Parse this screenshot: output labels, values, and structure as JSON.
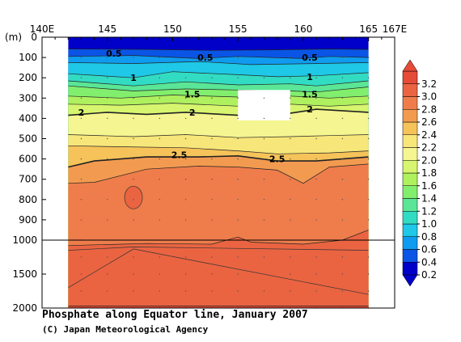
{
  "caption": {
    "title": "Phosphate along Equator line, January 2007",
    "credit": "(C) Japan Meteorological Agency"
  },
  "chart_data": {
    "type": "heatmap",
    "variable": "Phosphate",
    "x_axis": {
      "ticks": [
        140,
        145,
        150,
        155,
        160,
        165,
        167
      ],
      "tick_labels": [
        "140E",
        "145",
        "150",
        "155",
        "160",
        "165",
        "167E"
      ],
      "range": [
        140,
        167
      ]
    },
    "y_axis": {
      "unit_label": "(m)",
      "ticks_upper": [
        0,
        100,
        200,
        300,
        400,
        500,
        600,
        700,
        800,
        900,
        1000
      ],
      "ticks_lower": [
        1500,
        2000
      ],
      "tick_labels": [
        "0",
        "100",
        "200",
        "300",
        "400",
        "500",
        "600",
        "700",
        "800",
        "900",
        "1000",
        "1500",
        "2000"
      ],
      "range": [
        0,
        2000
      ],
      "scale_break_at": 1000
    },
    "data_lon_range": [
      142,
      165
    ],
    "missing_box": {
      "lon": [
        155,
        159
      ],
      "depth": [
        260,
        410
      ]
    },
    "colorbar": {
      "ticks": [
        "0.2",
        "0.4",
        "0.6",
        "0.8",
        "1.0",
        "1.2",
        "1.4",
        "1.6",
        "1.8",
        "2.0",
        "2.2",
        "2.4",
        "2.6",
        "2.8",
        "3.0",
        "3.2"
      ],
      "colors": [
        "#0000c8",
        "#0a55e6",
        "#0f9bf0",
        "#1ec8e6",
        "#32dcc3",
        "#5ae696",
        "#82ee6e",
        "#aff05f",
        "#d7f56e",
        "#f5f591",
        "#f7e67a",
        "#f5c35a",
        "#f29b50",
        "#ee7d4b",
        "#ea6441",
        "#e64b37"
      ]
    },
    "contour_labels": [
      {
        "text": "0.5",
        "lon": 145.5,
        "depth": 80
      },
      {
        "text": "0.5",
        "lon": 152.5,
        "depth": 100
      },
      {
        "text": "0.5",
        "lon": 160.5,
        "depth": 100
      },
      {
        "text": "1",
        "lon": 147,
        "depth": 200
      },
      {
        "text": "1",
        "lon": 160.5,
        "depth": 195
      },
      {
        "text": "1.5",
        "lon": 151.5,
        "depth": 280
      },
      {
        "text": "1.5",
        "lon": 160.5,
        "depth": 280
      },
      {
        "text": "2",
        "lon": 143,
        "depth": 370
      },
      {
        "text": "2",
        "lon": 151.5,
        "depth": 370
      },
      {
        "text": "2",
        "lon": 160.5,
        "depth": 355
      },
      {
        "text": "2.5",
        "lon": 150.5,
        "depth": 580
      },
      {
        "text": "2.5",
        "lon": 158,
        "depth": 600
      }
    ],
    "levels": [
      {
        "value": 0.4,
        "profile": [
          [
            142,
            58
          ],
          [
            148,
            60
          ],
          [
            153,
            65
          ],
          [
            158,
            62
          ],
          [
            162,
            58
          ],
          [
            165,
            60
          ]
        ]
      },
      {
        "value": 0.6,
        "profile": [
          [
            142,
            95
          ],
          [
            147,
            90
          ],
          [
            152,
            105
          ],
          [
            155,
            95
          ],
          [
            160,
            105
          ],
          [
            162,
            95
          ],
          [
            165,
            100
          ]
        ]
      },
      {
        "value": 0.8,
        "profile": [
          [
            142,
            125
          ],
          [
            147,
            130
          ],
          [
            152,
            120
          ],
          [
            156,
            135
          ],
          [
            161,
            130
          ],
          [
            165,
            125
          ]
        ]
      },
      {
        "value": 1.0,
        "profile": [
          [
            142,
            180
          ],
          [
            147,
            200
          ],
          [
            150,
            170
          ],
          [
            155,
            185
          ],
          [
            158,
            195
          ],
          [
            161,
            190
          ],
          [
            165,
            175
          ]
        ]
      },
      {
        "value": 1.2,
        "profile": [
          [
            142,
            215
          ],
          [
            147,
            240
          ],
          [
            151,
            220
          ],
          [
            155,
            235
          ],
          [
            159,
            230
          ],
          [
            161,
            240
          ],
          [
            165,
            215
          ]
        ]
      },
      {
        "value": 1.4,
        "profile": [
          [
            142,
            240
          ],
          [
            147,
            265
          ],
          [
            151,
            255
          ],
          [
            155,
            260
          ],
          [
            159,
            265
          ],
          [
            161,
            270
          ],
          [
            165,
            245
          ]
        ]
      },
      {
        "value": 1.6,
        "profile": [
          [
            142,
            290
          ],
          [
            146,
            300
          ],
          [
            150,
            285
          ],
          [
            155,
            295
          ],
          [
            159,
            290
          ],
          [
            162,
            300
          ],
          [
            165,
            290
          ]
        ]
      },
      {
        "value": 1.8,
        "profile": [
          [
            142,
            330
          ],
          [
            146,
            335
          ],
          [
            150,
            325
          ],
          [
            155,
            340
          ],
          [
            159,
            330
          ],
          [
            162,
            340
          ],
          [
            165,
            330
          ]
        ]
      },
      {
        "value": 2.0,
        "profile": [
          [
            142,
            385
          ],
          [
            145,
            370
          ],
          [
            148,
            380
          ],
          [
            151,
            370
          ],
          [
            155,
            385
          ],
          [
            159,
            375
          ],
          [
            161,
            355
          ],
          [
            165,
            370
          ]
        ]
      },
      {
        "value": 2.2,
        "profile": [
          [
            142,
            480
          ],
          [
            147,
            490
          ],
          [
            151,
            480
          ],
          [
            155,
            495
          ],
          [
            159,
            490
          ],
          [
            162,
            485
          ],
          [
            165,
            480
          ]
        ]
      },
      {
        "value": 2.4,
        "profile": [
          [
            142,
            535
          ],
          [
            146,
            540
          ],
          [
            151,
            545
          ],
          [
            155,
            560
          ],
          [
            158,
            575
          ],
          [
            162,
            570
          ],
          [
            165,
            560
          ]
        ]
      },
      {
        "value": 2.6,
        "profile": [
          [
            142,
            640
          ],
          [
            144,
            610
          ],
          [
            148,
            590
          ],
          [
            152,
            590
          ],
          [
            155,
            585
          ],
          [
            158,
            610
          ],
          [
            161,
            610
          ],
          [
            165,
            590
          ]
        ]
      },
      {
        "value": 2.8,
        "profile": [
          [
            142,
            720
          ],
          [
            144,
            715
          ],
          [
            148,
            650
          ],
          [
            152,
            635
          ],
          [
            155,
            640
          ],
          [
            158,
            655
          ],
          [
            160,
            720
          ],
          [
            162,
            640
          ],
          [
            165,
            625
          ]
        ]
      },
      {
        "value": 3.0,
        "profile": [
          [
            142,
            1080
          ],
          [
            148,
            1050
          ],
          [
            153,
            1060
          ],
          [
            155,
            985
          ],
          [
            156,
            1030
          ],
          [
            160,
            1060
          ],
          [
            163,
            1000
          ],
          [
            165,
            950
          ]
        ]
      },
      {
        "value": 3.2,
        "profile": [
          [
            142,
            1970
          ],
          [
            165,
            1970
          ]
        ]
      }
    ],
    "hotspot": {
      "lon": 147,
      "depth": 790,
      "value": 3.0
    },
    "lower_dip": {
      "lon": 147,
      "depth": 1130
    }
  }
}
